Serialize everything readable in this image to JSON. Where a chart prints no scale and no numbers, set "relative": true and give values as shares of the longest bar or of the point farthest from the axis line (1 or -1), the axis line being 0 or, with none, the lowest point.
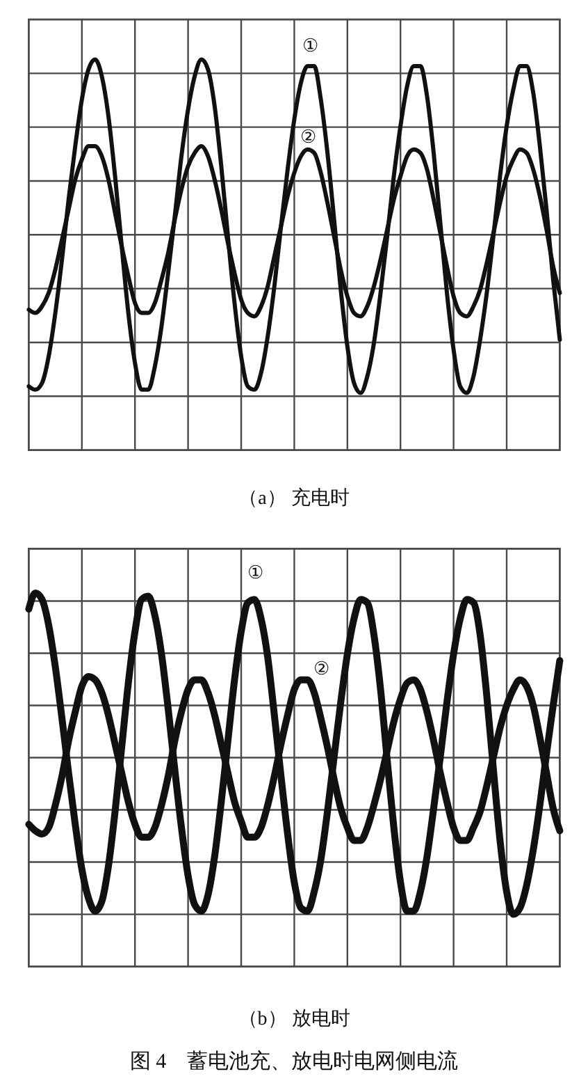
{
  "chart_data": [
    {
      "type": "line",
      "title": "（a） 充电时",
      "relative": true,
      "grid": true,
      "categories": [
        null,
        null,
        null,
        null,
        null,
        null,
        null,
        null,
        null,
        null,
        null,
        null,
        null,
        null,
        null,
        null,
        null,
        null,
        null,
        null,
        null,
        null,
        null,
        null,
        null,
        null,
        null,
        null,
        null,
        null,
        null,
        null,
        null,
        null,
        null,
        null,
        null,
        null,
        null,
        null,
        null,
        null,
        null,
        null,
        null,
        null,
        null,
        null,
        null,
        null,
        null,
        null,
        null,
        null,
        null,
        null,
        null,
        null,
        null,
        null,
        null,
        null,
        null,
        null,
        null,
        null,
        null,
        null,
        null,
        null,
        null,
        null,
        null,
        null,
        null,
        null,
        null,
        null,
        null,
        null,
        null
      ],
      "series": [
        {
          "name": "①",
          "color": "#111111",
          "values": [
            0.02,
            0.01,
            0.03,
            0.11,
            0.24,
            0.4,
            0.58,
            0.74,
            0.88,
            0.97,
            1,
            0.95,
            0.83,
            0.65,
            0.44,
            0.24,
            0.09,
            0.01,
            0.01,
            0.08,
            0.2,
            0.36,
            0.53,
            0.71,
            0.85,
            0.95,
            1,
            0.97,
            0.86,
            0.68,
            0.47,
            0.27,
            0.11,
            0.02,
            0.01,
            0.06,
            0.17,
            0.32,
            0.5,
            0.67,
            0.82,
            0.93,
            0.98,
            0.98,
            0.88,
            0.72,
            0.52,
            0.31,
            0.14,
            0.03,
            0,
            0.05,
            0.15,
            0.3,
            0.47,
            0.65,
            0.8,
            0.92,
            0.98,
            0.98,
            0.89,
            0.72,
            0.51,
            0.3,
            0.13,
            0.02,
            0,
            0.05,
            0.16,
            0.3,
            0.47,
            0.65,
            0.8,
            0.91,
            0.98,
            0.98,
            0.9,
            0.74,
            0.55,
            0.34,
            0.16
          ]
        },
        {
          "name": "②",
          "color": "#111111",
          "values": [
            0.25,
            0.24,
            0.26,
            0.3,
            0.37,
            0.46,
            0.55,
            0.64,
            0.7,
            0.74,
            0.74,
            0.71,
            0.64,
            0.54,
            0.44,
            0.35,
            0.27,
            0.24,
            0.24,
            0.27,
            0.34,
            0.42,
            0.52,
            0.61,
            0.68,
            0.72,
            0.74,
            0.71,
            0.64,
            0.55,
            0.45,
            0.36,
            0.28,
            0.24,
            0.23,
            0.26,
            0.32,
            0.41,
            0.5,
            0.59,
            0.66,
            0.71,
            0.73,
            0.72,
            0.66,
            0.57,
            0.47,
            0.37,
            0.29,
            0.24,
            0.23,
            0.26,
            0.32,
            0.4,
            0.49,
            0.58,
            0.65,
            0.71,
            0.73,
            0.72,
            0.67,
            0.58,
            0.48,
            0.38,
            0.29,
            0.24,
            0.23,
            0.26,
            0.31,
            0.39,
            0.48,
            0.57,
            0.65,
            0.7,
            0.73,
            0.72,
            0.67,
            0.59,
            0.49,
            0.38,
            0.3
          ]
        }
      ]
    },
    {
      "type": "line",
      "title": "（b） 放电时",
      "relative": true,
      "grid": true,
      "categories": [
        null,
        null,
        null,
        null,
        null,
        null,
        null,
        null,
        null,
        null,
        null,
        null,
        null,
        null,
        null,
        null,
        null,
        null,
        null,
        null,
        null,
        null,
        null,
        null,
        null,
        null,
        null,
        null,
        null,
        null,
        null,
        null,
        null,
        null,
        null,
        null,
        null,
        null,
        null,
        null,
        null,
        null,
        null,
        null,
        null,
        null,
        null,
        null,
        null,
        null,
        null,
        null,
        null,
        null,
        null,
        null,
        null,
        null,
        null,
        null,
        null,
        null,
        null,
        null,
        null,
        null,
        null,
        null,
        null,
        null,
        null,
        null,
        null,
        null,
        null,
        null,
        null,
        null,
        null,
        null,
        null
      ],
      "series": [
        {
          "name": "①",
          "color": "#111111",
          "values": [
            0.95,
            1,
            0.98,
            0.9,
            0.77,
            0.61,
            0.44,
            0.28,
            0.14,
            0.05,
            0.01,
            0.04,
            0.15,
            0.32,
            0.52,
            0.72,
            0.88,
            0.98,
            0.99,
            0.93,
            0.81,
            0.64,
            0.45,
            0.27,
            0.12,
            0.03,
            0.01,
            0.06,
            0.18,
            0.35,
            0.54,
            0.73,
            0.88,
            0.97,
            0.98,
            0.92,
            0.8,
            0.62,
            0.43,
            0.25,
            0.1,
            0.02,
            0.01,
            0.07,
            0.17,
            0.32,
            0.49,
            0.66,
            0.81,
            0.92,
            0.98,
            0.97,
            0.87,
            0.7,
            0.48,
            0.27,
            0.1,
            0.01,
            0.01,
            0.07,
            0.18,
            0.33,
            0.49,
            0.66,
            0.81,
            0.92,
            0.98,
            0.97,
            0.87,
            0.68,
            0.45,
            0.23,
            0.07,
            0,
            0.02,
            0.09,
            0.2,
            0.34,
            0.5,
            0.65,
            0.79
          ]
        },
        {
          "name": "②",
          "color": "#111111",
          "values": [
            0.28,
            0.26,
            0.25,
            0.27,
            0.34,
            0.43,
            0.54,
            0.63,
            0.71,
            0.74,
            0.73,
            0.69,
            0.62,
            0.53,
            0.44,
            0.35,
            0.28,
            0.24,
            0.24,
            0.27,
            0.34,
            0.43,
            0.54,
            0.63,
            0.7,
            0.73,
            0.73,
            0.69,
            0.62,
            0.53,
            0.44,
            0.35,
            0.29,
            0.24,
            0.24,
            0.27,
            0.34,
            0.43,
            0.53,
            0.62,
            0.7,
            0.73,
            0.73,
            0.69,
            0.61,
            0.52,
            0.42,
            0.33,
            0.27,
            0.23,
            0.23,
            0.27,
            0.34,
            0.42,
            0.51,
            0.6,
            0.67,
            0.72,
            0.73,
            0.7,
            0.63,
            0.54,
            0.44,
            0.35,
            0.27,
            0.23,
            0.23,
            0.27,
            0.32,
            0.4,
            0.49,
            0.58,
            0.65,
            0.7,
            0.73,
            0.71,
            0.65,
            0.55,
            0.44,
            0.33,
            0.26
          ]
        }
      ],
      "annotations": [
        "图 4　蓄电池充、放电时电网侧电流"
      ]
    }
  ]
}
